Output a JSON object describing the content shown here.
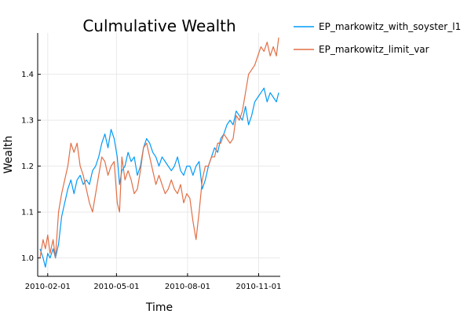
{
  "chart_data": {
    "type": "line",
    "title": "Culmulative Wealth",
    "xlabel": "Time",
    "ylabel": "Wealth",
    "xlim": [
      "2010-01-19",
      "2010-11-29"
    ],
    "ylim": [
      0.96,
      1.49
    ],
    "x_ticks": [
      {
        "date": "2010-02-01",
        "label": "2010-02-01"
      },
      {
        "date": "2010-05-01",
        "label": "2010-05-01"
      },
      {
        "date": "2010-08-01",
        "label": "2010-08-01"
      },
      {
        "date": "2010-11-01",
        "label": "2010-11-01"
      }
    ],
    "y_ticks": [
      {
        "value": 1.0,
        "label": "1.0"
      },
      {
        "value": 1.1,
        "label": "1.1"
      },
      {
        "value": 1.2,
        "label": "1.2"
      },
      {
        "value": 1.3,
        "label": "1.3"
      },
      {
        "value": 1.4,
        "label": "1.4"
      }
    ],
    "grid": true,
    "legend_position": "outside-right-top",
    "series": [
      {
        "name": "EP_markowitz_with_soyster_l1",
        "color": "#009af9",
        "x": [
          "2010-01-22",
          "2010-01-26",
          "2010-01-29",
          "2010-02-01",
          "2010-02-04",
          "2010-02-08",
          "2010-02-11",
          "2010-02-15",
          "2010-02-19",
          "2010-02-23",
          "2010-02-27",
          "2010-03-03",
          "2010-03-07",
          "2010-03-11",
          "2010-03-15",
          "2010-03-19",
          "2010-03-23",
          "2010-03-27",
          "2010-03-31",
          "2010-04-04",
          "2010-04-08",
          "2010-04-12",
          "2010-04-16",
          "2010-04-20",
          "2010-04-24",
          "2010-04-28",
          "2010-05-02",
          "2010-05-05",
          "2010-05-08",
          "2010-05-12",
          "2010-05-16",
          "2010-05-20",
          "2010-05-24",
          "2010-05-28",
          "2010-06-01",
          "2010-06-05",
          "2010-06-09",
          "2010-06-13",
          "2010-06-17",
          "2010-06-21",
          "2010-06-25",
          "2010-06-29",
          "2010-07-03",
          "2010-07-07",
          "2010-07-11",
          "2010-07-15",
          "2010-07-19",
          "2010-07-23",
          "2010-07-27",
          "2010-07-31",
          "2010-08-04",
          "2010-08-08",
          "2010-08-12",
          "2010-08-16",
          "2010-08-20",
          "2010-08-24",
          "2010-08-28",
          "2010-09-01",
          "2010-09-05",
          "2010-09-09",
          "2010-09-13",
          "2010-09-17",
          "2010-09-21",
          "2010-09-25",
          "2010-09-29",
          "2010-10-03",
          "2010-10-07",
          "2010-10-11",
          "2010-10-15",
          "2010-10-19",
          "2010-10-23",
          "2010-10-27",
          "2010-10-31",
          "2010-11-04",
          "2010-11-08",
          "2010-11-12",
          "2010-11-16",
          "2010-11-20",
          "2010-11-24",
          "2010-11-27"
        ],
        "values": [
          1.02,
          1.0,
          0.98,
          1.01,
          1.0,
          1.02,
          1.0,
          1.03,
          1.09,
          1.12,
          1.15,
          1.17,
          1.14,
          1.17,
          1.18,
          1.16,
          1.17,
          1.16,
          1.19,
          1.2,
          1.22,
          1.25,
          1.27,
          1.24,
          1.28,
          1.26,
          1.22,
          1.16,
          1.19,
          1.2,
          1.23,
          1.21,
          1.22,
          1.18,
          1.2,
          1.24,
          1.26,
          1.25,
          1.23,
          1.22,
          1.2,
          1.22,
          1.21,
          1.2,
          1.19,
          1.2,
          1.22,
          1.19,
          1.18,
          1.2,
          1.2,
          1.18,
          1.2,
          1.21,
          1.15,
          1.17,
          1.2,
          1.22,
          1.24,
          1.23,
          1.26,
          1.27,
          1.29,
          1.3,
          1.29,
          1.32,
          1.31,
          1.3,
          1.33,
          1.29,
          1.31,
          1.34,
          1.35,
          1.36,
          1.37,
          1.34,
          1.36,
          1.35,
          1.34,
          1.36
        ]
      },
      {
        "name": "EP_markowitz_limit_var",
        "color": "#e26f46",
        "x": [
          "2010-01-22",
          "2010-01-26",
          "2010-01-29",
          "2010-02-01",
          "2010-02-04",
          "2010-02-08",
          "2010-02-11",
          "2010-02-15",
          "2010-02-19",
          "2010-02-23",
          "2010-02-27",
          "2010-03-03",
          "2010-03-07",
          "2010-03-11",
          "2010-03-15",
          "2010-03-19",
          "2010-03-23",
          "2010-03-27",
          "2010-03-31",
          "2010-04-04",
          "2010-04-08",
          "2010-04-12",
          "2010-04-16",
          "2010-04-20",
          "2010-04-24",
          "2010-04-28",
          "2010-05-02",
          "2010-05-05",
          "2010-05-08",
          "2010-05-12",
          "2010-05-16",
          "2010-05-20",
          "2010-05-24",
          "2010-05-28",
          "2010-06-01",
          "2010-06-05",
          "2010-06-09",
          "2010-06-13",
          "2010-06-17",
          "2010-06-21",
          "2010-06-25",
          "2010-06-29",
          "2010-07-03",
          "2010-07-07",
          "2010-07-11",
          "2010-07-15",
          "2010-07-19",
          "2010-07-23",
          "2010-07-27",
          "2010-07-31",
          "2010-08-04",
          "2010-08-08",
          "2010-08-12",
          "2010-08-16",
          "2010-08-20",
          "2010-08-24",
          "2010-08-28",
          "2010-09-01",
          "2010-09-05",
          "2010-09-09",
          "2010-09-13",
          "2010-09-17",
          "2010-09-21",
          "2010-09-25",
          "2010-09-29",
          "2010-10-03",
          "2010-10-07",
          "2010-10-11",
          "2010-10-15",
          "2010-10-19",
          "2010-10-23",
          "2010-10-27",
          "2010-10-31",
          "2010-11-04",
          "2010-11-08",
          "2010-11-12",
          "2010-11-16",
          "2010-11-20",
          "2010-11-24",
          "2010-11-27"
        ],
        "values": [
          1.0,
          1.04,
          1.02,
          1.05,
          1.01,
          1.04,
          1.0,
          1.1,
          1.14,
          1.17,
          1.2,
          1.25,
          1.23,
          1.25,
          1.2,
          1.18,
          1.15,
          1.12,
          1.1,
          1.14,
          1.18,
          1.22,
          1.21,
          1.18,
          1.2,
          1.21,
          1.12,
          1.1,
          1.22,
          1.17,
          1.19,
          1.17,
          1.14,
          1.15,
          1.19,
          1.24,
          1.25,
          1.22,
          1.19,
          1.16,
          1.18,
          1.16,
          1.14,
          1.15,
          1.17,
          1.15,
          1.14,
          1.16,
          1.12,
          1.14,
          1.13,
          1.08,
          1.04,
          1.1,
          1.17,
          1.2,
          1.2,
          1.22,
          1.22,
          1.25,
          1.25,
          1.27,
          1.26,
          1.25,
          1.26,
          1.31,
          1.3,
          1.32,
          1.36,
          1.4,
          1.41,
          1.42,
          1.44,
          1.46,
          1.45,
          1.47,
          1.44,
          1.46,
          1.44,
          1.48
        ]
      }
    ]
  }
}
